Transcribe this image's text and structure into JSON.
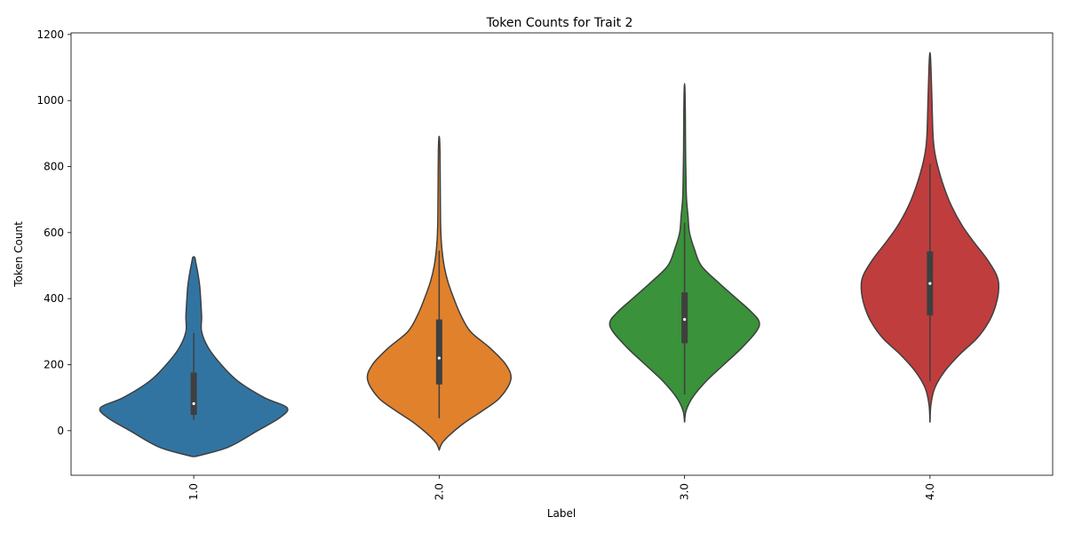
{
  "chart_data": {
    "type": "violin",
    "title": "Token Counts for Trait 2",
    "xlabel": "Label",
    "ylabel": "Token Count",
    "ylim": [
      -135,
      1205
    ],
    "yticks": [
      0,
      200,
      400,
      600,
      800,
      1000,
      1200
    ],
    "categories": [
      "1.0",
      "2.0",
      "3.0",
      "4.0"
    ],
    "grid": false,
    "series": [
      {
        "category": "1.0",
        "color": "#3274a1",
        "density": [
          [
            -78,
            0.02
          ],
          [
            -50,
            0.35
          ],
          [
            0,
            0.65
          ],
          [
            40,
            0.88
          ],
          [
            70,
            0.95
          ],
          [
            100,
            0.72
          ],
          [
            150,
            0.45
          ],
          [
            200,
            0.28
          ],
          [
            250,
            0.15
          ],
          [
            300,
            0.08
          ],
          [
            345,
            0.08
          ],
          [
            400,
            0.07
          ],
          [
            440,
            0.06
          ],
          [
            480,
            0.04
          ],
          [
            510,
            0.02
          ],
          [
            525,
            0.01
          ]
        ],
        "q1": 48,
        "median": 82,
        "q3": 176,
        "whisker_low": 33,
        "whisker_high": 296
      },
      {
        "category": "2.0",
        "color": "#e1812c",
        "density": [
          [
            -58,
            0.0
          ],
          [
            -30,
            0.05
          ],
          [
            20,
            0.24
          ],
          [
            60,
            0.44
          ],
          [
            100,
            0.62
          ],
          [
            155,
            0.73
          ],
          [
            200,
            0.68
          ],
          [
            250,
            0.52
          ],
          [
            300,
            0.32
          ],
          [
            350,
            0.22
          ],
          [
            400,
            0.15
          ],
          [
            450,
            0.09
          ],
          [
            500,
            0.05
          ],
          [
            560,
            0.025
          ],
          [
            620,
            0.015
          ],
          [
            700,
            0.012
          ],
          [
            780,
            0.01
          ],
          [
            850,
            0.008
          ],
          [
            887,
            0.003
          ]
        ],
        "q1": 140,
        "median": 220,
        "q3": 337,
        "whisker_low": 38,
        "whisker_high": 545
      },
      {
        "category": "3.0",
        "color": "#3a923a",
        "density": [
          [
            25,
            0.0
          ],
          [
            60,
            0.015
          ],
          [
            100,
            0.08
          ],
          [
            150,
            0.22
          ],
          [
            200,
            0.4
          ],
          [
            250,
            0.58
          ],
          [
            300,
            0.73
          ],
          [
            330,
            0.76
          ],
          [
            360,
            0.68
          ],
          [
            400,
            0.53
          ],
          [
            450,
            0.34
          ],
          [
            500,
            0.17
          ],
          [
            550,
            0.1
          ],
          [
            600,
            0.05
          ],
          [
            650,
            0.035
          ],
          [
            700,
            0.02
          ],
          [
            750,
            0.015
          ],
          [
            850,
            0.01
          ],
          [
            950,
            0.008
          ],
          [
            1040,
            0.003
          ]
        ],
        "q1": 265,
        "median": 337,
        "q3": 419,
        "whisker_low": 110,
        "whisker_high": 630
      },
      {
        "category": "4.0",
        "color": "#c03d3e",
        "density": [
          [
            25,
            0.0
          ],
          [
            80,
            0.01
          ],
          [
            130,
            0.05
          ],
          [
            180,
            0.15
          ],
          [
            230,
            0.3
          ],
          [
            280,
            0.48
          ],
          [
            330,
            0.6
          ],
          [
            380,
            0.67
          ],
          [
            430,
            0.7
          ],
          [
            470,
            0.68
          ],
          [
            520,
            0.58
          ],
          [
            570,
            0.45
          ],
          [
            620,
            0.33
          ],
          [
            680,
            0.22
          ],
          [
            740,
            0.14
          ],
          [
            800,
            0.08
          ],
          [
            850,
            0.045
          ],
          [
            900,
            0.03
          ],
          [
            1000,
            0.02
          ],
          [
            1100,
            0.01
          ],
          [
            1140,
            0.003
          ]
        ],
        "q1": 349,
        "median": 446,
        "q3": 543,
        "whisker_low": 150,
        "whisker_high": 808
      }
    ]
  }
}
